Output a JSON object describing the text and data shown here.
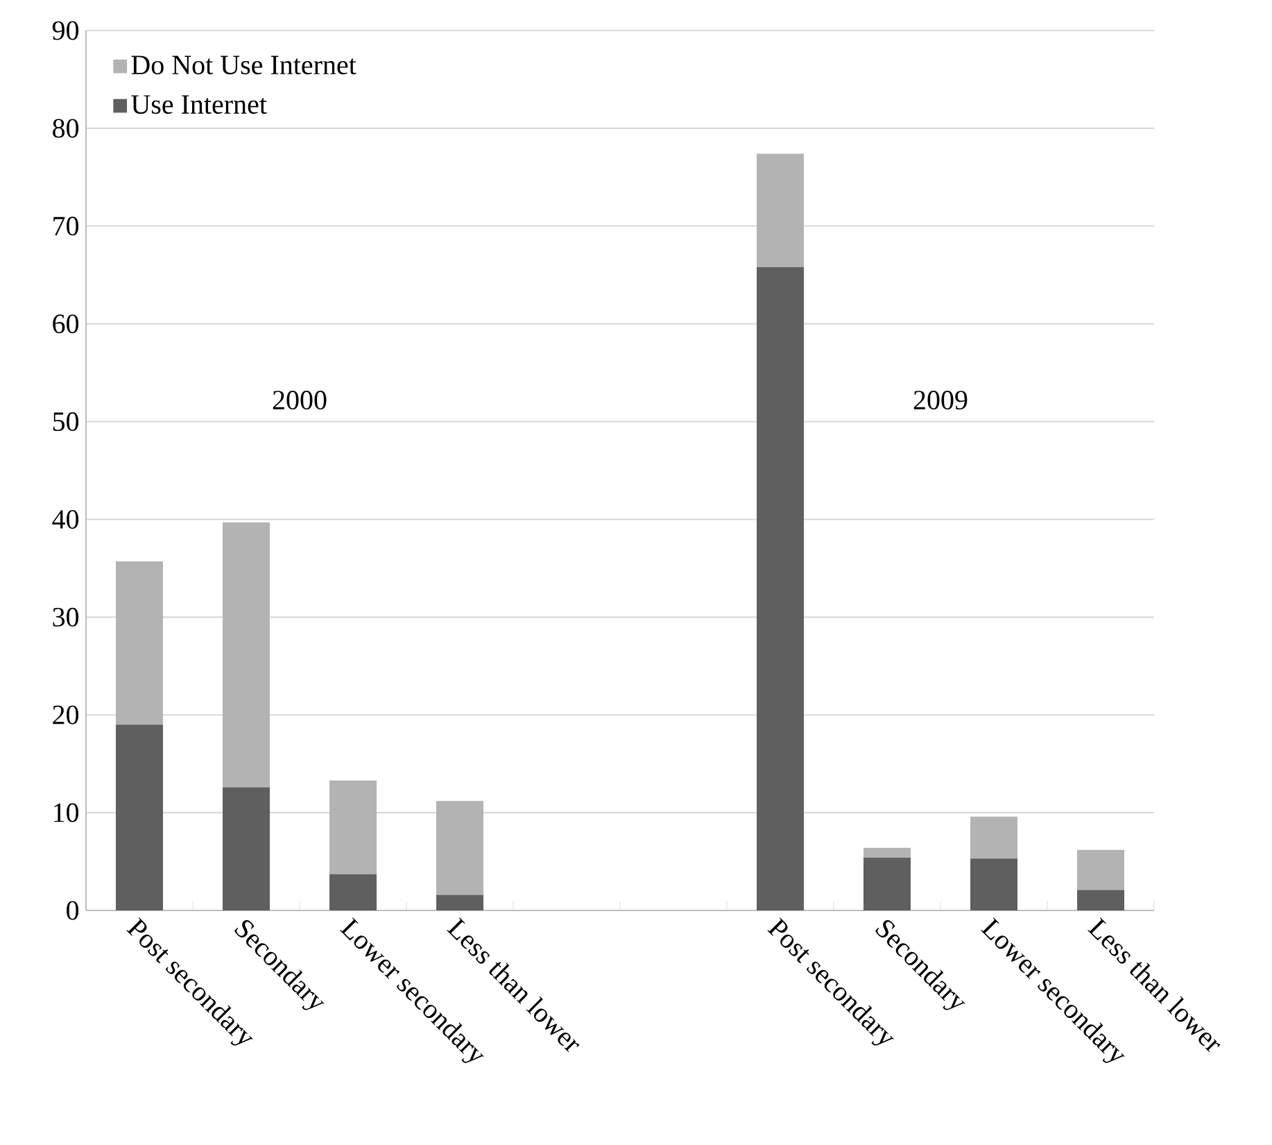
{
  "chart_data": {
    "type": "bar",
    "stacked": true,
    "categories": [
      "Post secondary",
      "Secondary",
      "Lower secondary",
      "Less than lower",
      null,
      null,
      "Post secondary",
      "Secondary",
      "Lower secondary",
      "Less than lower"
    ],
    "series": [
      {
        "name": "Use Internet",
        "color": "#5f5f5f",
        "values": [
          19.0,
          12.6,
          3.7,
          1.6,
          null,
          null,
          65.8,
          5.4,
          5.3,
          2.1
        ]
      },
      {
        "name": "Do Not Use Internet",
        "color": "#b3b3b3",
        "values": [
          16.7,
          27.1,
          9.6,
          9.6,
          null,
          null,
          11.6,
          1.0,
          4.3,
          4.1
        ]
      }
    ],
    "ylim": [
      0,
      90
    ],
    "yticks": [
      0,
      10,
      20,
      30,
      40,
      50,
      60,
      70,
      80,
      90
    ],
    "grid": "y",
    "legend": "top left",
    "annotations": [
      "2000",
      "2009"
    ]
  }
}
